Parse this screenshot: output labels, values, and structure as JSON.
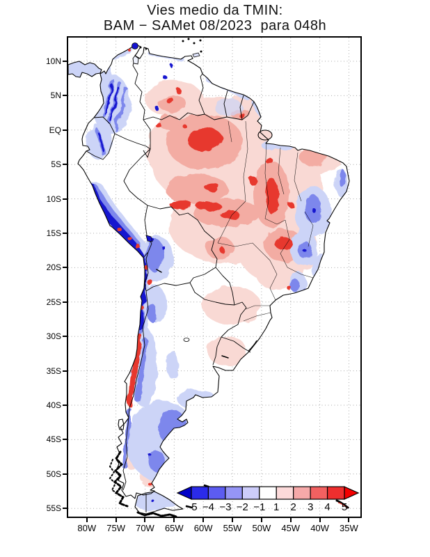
{
  "title": {
    "line1": "Vies medio da TMIN:",
    "line2": "BAM − SAMet 08/2023  para 048h"
  },
  "axes": {
    "lat_ticks": [
      {
        "label": "10N",
        "deg": 10
      },
      {
        "label": "5N",
        "deg": 5
      },
      {
        "label": "EQ",
        "deg": 0
      },
      {
        "label": "5S",
        "deg": -5
      },
      {
        "label": "10S",
        "deg": -10
      },
      {
        "label": "15S",
        "deg": -15
      },
      {
        "label": "20S",
        "deg": -20
      },
      {
        "label": "25S",
        "deg": -25
      },
      {
        "label": "30S",
        "deg": -30
      },
      {
        "label": "35S",
        "deg": -35
      },
      {
        "label": "40S",
        "deg": -40
      },
      {
        "label": "45S",
        "deg": -45
      },
      {
        "label": "50S",
        "deg": -50
      },
      {
        "label": "55S",
        "deg": -55
      }
    ],
    "lon_ticks": [
      {
        "label": "80W",
        "deg": 80
      },
      {
        "label": "75W",
        "deg": 75
      },
      {
        "label": "70W",
        "deg": 70
      },
      {
        "label": "65W",
        "deg": 65
      },
      {
        "label": "60W",
        "deg": 60
      },
      {
        "label": "55W",
        "deg": 55
      },
      {
        "label": "50W",
        "deg": 50
      },
      {
        "label": "45W",
        "deg": 45
      },
      {
        "label": "40W",
        "deg": 40
      },
      {
        "label": "35W",
        "deg": 35
      }
    ]
  },
  "colorbar": {
    "tick_labels": [
      "−5",
      "−4",
      "−3",
      "−2",
      "−1",
      "1",
      "2",
      "3",
      "4",
      "5"
    ],
    "values": [
      -5,
      -4,
      -3,
      -2,
      -1,
      1,
      2,
      3,
      4,
      5
    ],
    "box_colors": [
      "#2b2bea",
      "#5c5cf1",
      "#9595f6",
      "#cdcdfa",
      "#ffffff",
      "#fcdada",
      "#f6a9a9",
      "#f26161",
      "#ee2e2e"
    ],
    "left_arrow_color": "#0000c8",
    "right_arrow_color": "#f40000"
  }
}
